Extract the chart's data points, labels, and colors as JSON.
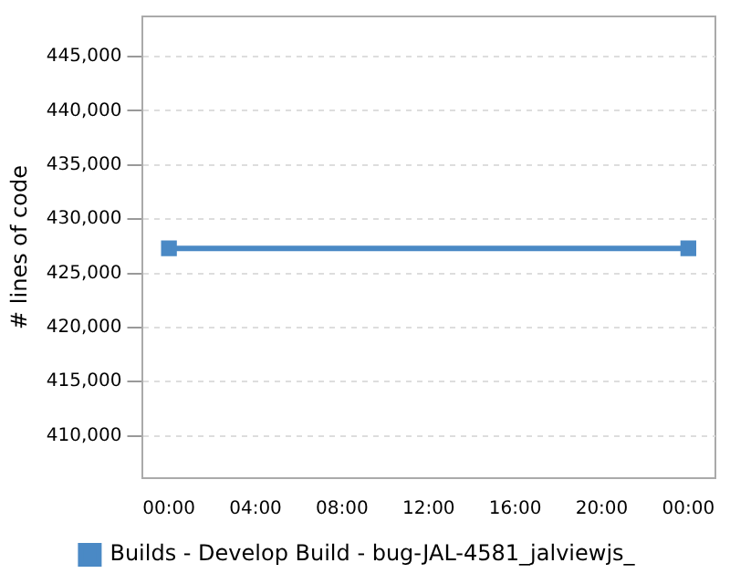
{
  "chart_data": {
    "type": "line",
    "ylabel": "# lines of code",
    "x": [
      0,
      24
    ],
    "series": [
      {
        "name": "Builds - Develop Build - bug-JAL-4581_jalviewjs_",
        "color": "#4a89c5",
        "values": [
          427300,
          427300
        ]
      }
    ],
    "xlim": [
      -1.25,
      25.25
    ],
    "xticks": [
      {
        "value": 0,
        "label": "00:00"
      },
      {
        "value": 4,
        "label": "04:00"
      },
      {
        "value": 8,
        "label": "08:00"
      },
      {
        "value": 12,
        "label": "12:00"
      },
      {
        "value": 16,
        "label": "16:00"
      },
      {
        "value": 20,
        "label": "20:00"
      },
      {
        "value": 24,
        "label": "00:00"
      }
    ],
    "ylim": [
      406100,
      448700
    ],
    "yticks": [
      {
        "value": 410000,
        "label": "410,000"
      },
      {
        "value": 415000,
        "label": "415,000"
      },
      {
        "value": 420000,
        "label": "420,000"
      },
      {
        "value": 425000,
        "label": "425,000"
      },
      {
        "value": 430000,
        "label": "430,000"
      },
      {
        "value": 435000,
        "label": "435,000"
      },
      {
        "value": 440000,
        "label": "440,000"
      },
      {
        "value": 445000,
        "label": "445,000"
      }
    ],
    "grid": "y",
    "legend": "bottom",
    "marker": "square",
    "line_style": "solid"
  }
}
